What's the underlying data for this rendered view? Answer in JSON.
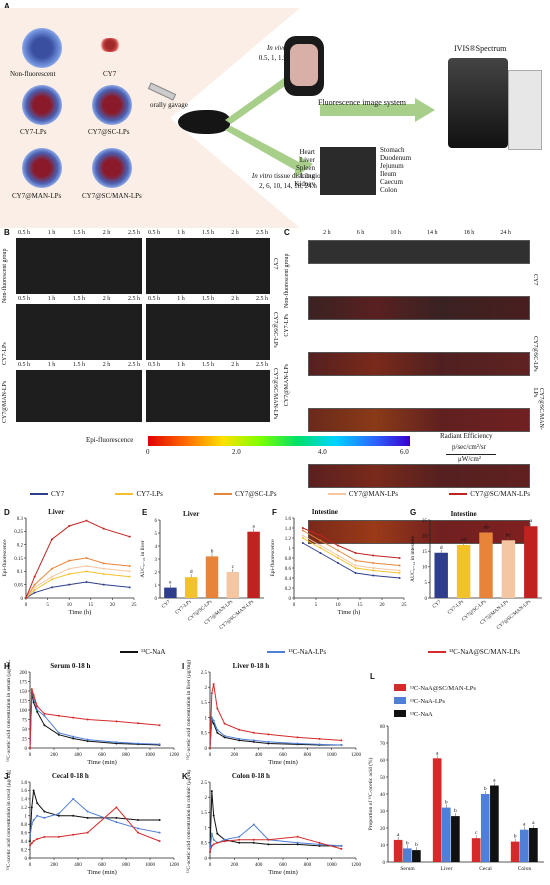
{
  "panel_letters": [
    "A",
    "B",
    "C",
    "D",
    "E",
    "F",
    "G",
    "H",
    "I",
    "J",
    "K",
    "L"
  ],
  "panelA": {
    "formulations": [
      "Non-fluorescent",
      "CY7",
      "CY7-LPs",
      "CY7@SC-LPs",
      "CY7@MAN-LPs",
      "CY7@SC/MAN-LPs"
    ],
    "gavage": "orally gavage",
    "in_vivo_label": "In vivo",
    "in_vivo_text": "image",
    "in_vivo_times": "0.5, 1, 1.5, 2, 2.5 h",
    "in_vitro_label": "In vitro",
    "in_vitro_text": "tissue distribution",
    "in_vitro_times": "2, 6, 10, 14, 18, 24 h",
    "organs_left": [
      "Heart",
      "Liver",
      "Spleen",
      "Lung",
      "Kidney"
    ],
    "organs_right": [
      "Stomach",
      "Duodenum",
      "Jejunum",
      "Ileum",
      "Caecum",
      "Colon"
    ],
    "system": "Fluorescence image system",
    "instrument": "IVIS®Spectrum"
  },
  "panelB": {
    "times": [
      "0.5 h",
      "1 h",
      "1.5 h",
      "2 h",
      "2.5 h"
    ],
    "row_labels_left": [
      "Non-fluorescent group",
      "CY7-LPs",
      "CY7@MAN-LPs"
    ],
    "row_labels_right": [
      "CY7",
      "CY7@SC-LPs",
      "CY7@SC/MAN-LPs"
    ]
  },
  "panelC": {
    "times": [
      "2 h",
      "6 h",
      "10 h",
      "14 h",
      "18 h",
      "24 h"
    ],
    "row_labels_left": [
      "Non-fluorescent group",
      "CY7-LPs",
      "CY7@MAN-LPs"
    ],
    "row_labels_right": [
      "CY7",
      "CY7@SC-LPs",
      "CY7@SC/MAN-LPs"
    ]
  },
  "colorbar": {
    "title": "Epi-fluorescence",
    "ticks": [
      "0",
      "2.0",
      "4.0",
      "6.0"
    ],
    "radiant": "Radiant Efficiency",
    "unit1": "p/sec/cm²/sr",
    "unit2": "μW/cm²"
  },
  "legend1": {
    "items": [
      {
        "name": "CY7",
        "color": "#2f3e8c"
      },
      {
        "name": "CY7-LPs",
        "color": "#f2c12e"
      },
      {
        "name": "CY7@SC-LPs",
        "color": "#e8843a"
      },
      {
        "name": "CY7@MAN-LPs",
        "color": "#f4c6a2"
      },
      {
        "name": "CY7@SC/MAN-LPs",
        "color": "#c0231f"
      }
    ]
  },
  "legend2": {
    "items": [
      {
        "name": "¹³C-NaA",
        "color": "#111111"
      },
      {
        "name": "¹³C-NaA-LPs",
        "color": "#4f7fd6"
      },
      {
        "name": "¹³C-NaA@SC/MAN-LPs",
        "color": "#d42a2a"
      }
    ]
  },
  "chart_data": [
    {
      "id": "D",
      "type": "line",
      "title": "Liver",
      "xlabel": "Time (h)",
      "ylabel": "Epi-fluorescence",
      "x": [
        0,
        2,
        6,
        10,
        14,
        18,
        24
      ],
      "xticks": [
        "0",
        "5",
        "10",
        "15",
        "20",
        "25"
      ],
      "yticks": [
        "0",
        "0.05",
        "0.1",
        "0.15",
        "0.2",
        "0.25",
        "0.3"
      ],
      "xlim": [
        0,
        25
      ],
      "ylim": [
        0,
        0.3
      ],
      "series": [
        {
          "name": "CY7",
          "values": [
            0,
            0.02,
            0.04,
            0.05,
            0.06,
            0.05,
            0.04
          ]
        },
        {
          "name": "CY7-LPs",
          "values": [
            0,
            0.03,
            0.07,
            0.09,
            0.1,
            0.09,
            0.08
          ]
        },
        {
          "name": "CY7@SC-LPs",
          "values": [
            0,
            0.05,
            0.11,
            0.14,
            0.15,
            0.13,
            0.12
          ]
        },
        {
          "name": "CY7@MAN-LPs",
          "values": [
            0,
            0.04,
            0.08,
            0.11,
            0.12,
            0.11,
            0.1
          ]
        },
        {
          "name": "CY7@SC/MAN-LPs",
          "values": [
            0,
            0.08,
            0.22,
            0.27,
            0.29,
            0.26,
            0.23
          ]
        }
      ]
    },
    {
      "id": "E",
      "type": "bar",
      "title": "Liver",
      "ylabel": "AUC₀₋₂₄ in liver",
      "categories": [
        "CY7",
        "CY7-LPs",
        "CY7@SC-LPs",
        "CY7@MAN-LPs",
        "CY7@SC/MAN-LPs"
      ],
      "values": [
        0.8,
        1.6,
        3.2,
        2.0,
        5.1
      ],
      "letters": [
        "e",
        "d",
        "b",
        "c",
        "a"
      ],
      "yticks": [
        "0",
        "1",
        "2",
        "3",
        "4",
        "5",
        "6"
      ],
      "ylim": [
        0,
        6
      ]
    },
    {
      "id": "F",
      "type": "line",
      "title": "Intestine",
      "xlabel": "Time (h)",
      "ylabel": "Epi-fluorescence",
      "x": [
        2,
        6,
        10,
        14,
        18,
        24
      ],
      "xticks": [
        "0",
        "5",
        "10",
        "15",
        "20",
        "25"
      ],
      "yticks": [
        "0",
        "0.2",
        "0.4",
        "0.6",
        "0.8",
        "1",
        "1.2",
        "1.4",
        "1.6"
      ],
      "xlim": [
        0,
        25
      ],
      "ylim": [
        0,
        1.6
      ],
      "series": [
        {
          "name": "CY7",
          "values": [
            1.1,
            0.9,
            0.7,
            0.5,
            0.45,
            0.4
          ]
        },
        {
          "name": "CY7-LPs",
          "values": [
            1.2,
            1.0,
            0.8,
            0.6,
            0.55,
            0.5
          ]
        },
        {
          "name": "CY7@SC-LPs",
          "values": [
            1.35,
            1.15,
            0.95,
            0.75,
            0.7,
            0.65
          ]
        },
        {
          "name": "CY7@MAN-LPs",
          "values": [
            1.25,
            1.05,
            0.85,
            0.65,
            0.6,
            0.55
          ]
        },
        {
          "name": "CY7@SC/MAN-LPs",
          "values": [
            1.4,
            1.25,
            1.05,
            0.9,
            0.85,
            0.8
          ]
        }
      ]
    },
    {
      "id": "G",
      "type": "bar",
      "title": "Intestine",
      "ylabel": "AUC₀₋₂₄ in intestine",
      "categories": [
        "CY7",
        "CY7-LPs",
        "CY7@SC-LPs",
        "CY7@MAN-LPs",
        "CY7@SC/MAN-LPs"
      ],
      "values": [
        14.5,
        17,
        21,
        18.5,
        23
      ],
      "letters": [
        "d",
        "cd",
        "ab",
        "bc",
        "a"
      ],
      "yticks": [
        "0",
        "5",
        "10",
        "15",
        "20",
        "25"
      ],
      "ylim": [
        0,
        25
      ]
    },
    {
      "id": "H",
      "type": "line",
      "title": "Serum 0-18 h",
      "xlabel": "Time (min)",
      "ylabel": "¹³C-acetic acid concentration in serum (μg/mL)",
      "x": [
        0,
        15,
        30,
        60,
        120,
        240,
        360,
        480,
        720,
        900,
        1080
      ],
      "xticks": [
        "0",
        "200",
        "400",
        "600",
        "800",
        "1000",
        "1200"
      ],
      "yticks": [
        "0",
        "25",
        "50",
        "75",
        "100",
        "125",
        "150",
        "175",
        "200"
      ],
      "xlim": [
        0,
        1200
      ],
      "ylim": [
        0,
        200
      ],
      "series": [
        {
          "name": "¹³C-NaA",
          "values": [
            0,
            145,
            120,
            95,
            60,
            35,
            25,
            18,
            12,
            10,
            8
          ]
        },
        {
          "name": "¹³C-NaA-LPs",
          "values": [
            0,
            150,
            135,
            100,
            85,
            40,
            30,
            22,
            15,
            12,
            10
          ]
        },
        {
          "name": "¹³C-NaA@SC/MAN-LPs",
          "values": [
            0,
            155,
            140,
            110,
            90,
            85,
            80,
            75,
            70,
            65,
            60
          ]
        }
      ]
    },
    {
      "id": "I",
      "type": "line",
      "title": "Liver 0-18 h",
      "xlabel": "Time (min)",
      "ylabel": "¹³C-acetic acid concentration in liver (μg/mg)",
      "x": [
        0,
        15,
        30,
        60,
        120,
        240,
        360,
        480,
        720,
        900,
        1080
      ],
      "xticks": [
        "0",
        "200",
        "400",
        "600",
        "800",
        "1000",
        "1200"
      ],
      "yticks": [
        "0",
        "0.5",
        "1",
        "1.5",
        "2",
        "2.5"
      ],
      "xlim": [
        0,
        1200
      ],
      "ylim": [
        0,
        2.5
      ],
      "series": [
        {
          "name": "¹³C-NaA",
          "values": [
            0,
            0.9,
            0.8,
            0.5,
            0.35,
            0.25,
            0.2,
            0.15,
            0.12,
            0.1,
            0.1
          ]
        },
        {
          "name": "¹³C-NaA-LPs",
          "values": [
            0,
            1.0,
            0.9,
            0.6,
            0.4,
            0.3,
            0.25,
            0.2,
            0.15,
            0.12,
            0.1
          ]
        },
        {
          "name": "¹³C-NaA@SC/MAN-LPs",
          "values": [
            0,
            1.8,
            2.1,
            1.3,
            0.8,
            0.6,
            0.5,
            0.45,
            0.35,
            0.3,
            0.25
          ]
        }
      ]
    },
    {
      "id": "J",
      "type": "line",
      "title": "Cecal 0-18 h",
      "xlabel": "Time (min)",
      "ylabel": "¹³C-acetic acid concentration in cecal (μg/mg)",
      "x": [
        0,
        15,
        30,
        60,
        120,
        240,
        360,
        480,
        720,
        900,
        1080
      ],
      "xticks": [
        "0",
        "200",
        "400",
        "600",
        "800",
        "1000",
        "1200"
      ],
      "yticks": [
        "0",
        "0.2",
        "0.4",
        "0.6",
        "0.8",
        "1",
        "1.2",
        "1.4",
        "1.6",
        "1.8"
      ],
      "xlim": [
        0,
        1200
      ],
      "ylim": [
        0,
        1.8
      ],
      "series": [
        {
          "name": "¹³C-NaA",
          "values": [
            0.4,
            1.2,
            1.6,
            1.3,
            1.1,
            1.0,
            1.0,
            0.95,
            0.95,
            0.9,
            0.9
          ]
        },
        {
          "name": "¹³C-NaA-LPs",
          "values": [
            0.5,
            0.8,
            0.9,
            1.0,
            0.95,
            1.05,
            1.4,
            1.1,
            0.85,
            0.7,
            0.6
          ]
        },
        {
          "name": "¹³C-NaA@SC/MAN-LPs",
          "values": [
            0.3,
            0.35,
            0.4,
            0.45,
            0.5,
            0.5,
            0.55,
            0.6,
            1.2,
            0.6,
            0.4
          ]
        }
      ]
    },
    {
      "id": "K",
      "type": "line",
      "title": "Colon 0-18 h",
      "xlabel": "Time (min)",
      "ylabel": "¹³C-acetic acid concentration in colonic (μg/mg)",
      "x": [
        0,
        15,
        30,
        60,
        120,
        240,
        360,
        480,
        720,
        900,
        1080
      ],
      "xticks": [
        "0",
        "200",
        "400",
        "600",
        "800",
        "1000",
        "1200"
      ],
      "yticks": [
        "0",
        "0.5",
        "1",
        "1.5",
        "2",
        "2.5"
      ],
      "xlim": [
        0,
        1200
      ],
      "ylim": [
        0,
        2.5
      ],
      "series": [
        {
          "name": "¹³C-NaA",
          "values": [
            0.2,
            2.2,
            1.4,
            0.8,
            0.6,
            0.5,
            0.5,
            0.45,
            0.45,
            0.4,
            0.4
          ]
        },
        {
          "name": "¹³C-NaA-LPs",
          "values": [
            0.2,
            0.8,
            0.6,
            0.5,
            0.6,
            0.7,
            1.1,
            0.6,
            0.5,
            0.45,
            0.4
          ]
        },
        {
          "name": "¹³C-NaA@SC/MAN-LPs",
          "values": [
            0.2,
            0.4,
            0.45,
            0.5,
            0.55,
            0.6,
            0.6,
            0.6,
            0.7,
            0.5,
            0.3
          ]
        }
      ]
    },
    {
      "id": "L",
      "type": "bar",
      "ylabel": "Proportion of ¹³C-acetic acid (%)",
      "categories": [
        "Serum",
        "Liver",
        "Cecal",
        "Colon"
      ],
      "yticks": [
        "0",
        "10",
        "20",
        "30",
        "40",
        "50",
        "60",
        "70",
        "80"
      ],
      "ylim": [
        0,
        80
      ],
      "series": [
        {
          "name": "¹³C-NaA@SC/MAN-LPs",
          "values": [
            13,
            61,
            14,
            12
          ],
          "letters": [
            "a",
            "a",
            "c",
            "b"
          ]
        },
        {
          "name": "¹³C-NaA-LPs",
          "values": [
            8,
            32,
            40,
            19
          ],
          "letters": [
            "b",
            "b",
            "b",
            "a"
          ]
        },
        {
          "name": "¹³C-NaA",
          "values": [
            7,
            27,
            45,
            20
          ],
          "letters": [
            "b",
            "b",
            "a",
            "a"
          ]
        }
      ]
    }
  ]
}
